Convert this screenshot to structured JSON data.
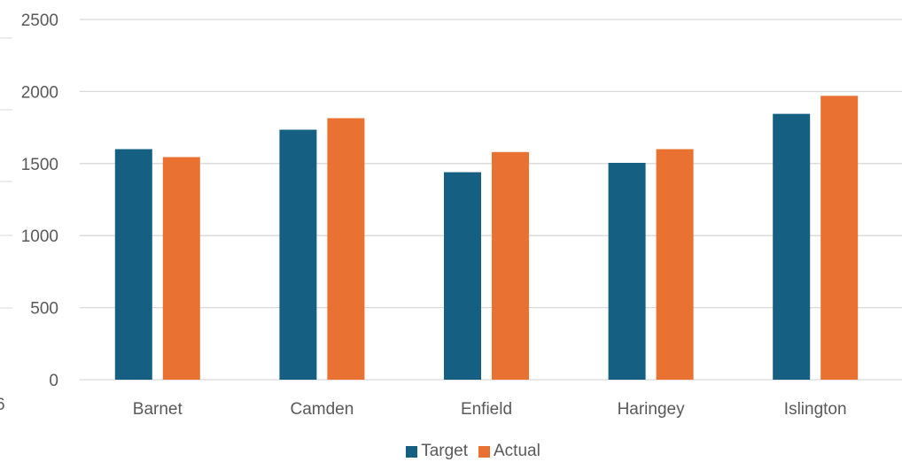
{
  "chart_data": {
    "type": "bar",
    "categories": [
      "Barnet",
      "Camden",
      "Enfield",
      "Haringey",
      "Islington"
    ],
    "series": [
      {
        "name": "Target",
        "color": "#156082",
        "values": [
          1600,
          1735,
          1440,
          1505,
          1845
        ]
      },
      {
        "name": "Actual",
        "color": "#E97132",
        "values": [
          1545,
          1815,
          1580,
          1600,
          1970
        ]
      }
    ],
    "yticks": [
      "0",
      "500",
      "1000",
      "1500",
      "2000",
      "2500"
    ],
    "ylim": [
      0,
      2500
    ],
    "grid": true,
    "legend_position": "bottom",
    "title": "",
    "xlabel": "",
    "ylabel": "",
    "clipped_left_fragment": "6"
  }
}
